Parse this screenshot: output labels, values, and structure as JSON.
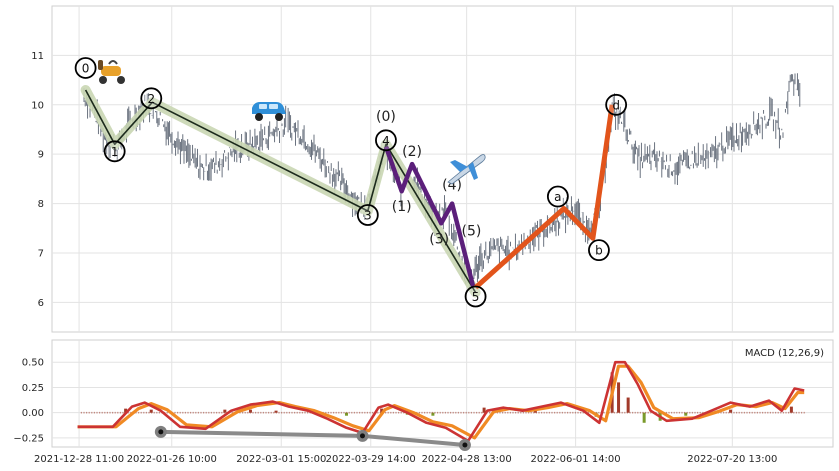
{
  "chart_data": [
    {
      "type": "line",
      "panel": "price",
      "title": "",
      "xlabel": "",
      "ylabel": "",
      "ylim": [
        5.4,
        12.0
      ],
      "yticks": [
        6,
        7,
        8,
        9,
        10,
        11
      ],
      "grid": true,
      "price_path": [
        [
          "2021-12-30",
          10.2
        ],
        [
          "2022-01-02",
          9.9
        ],
        [
          "2022-01-05",
          9.4
        ],
        [
          "2022-01-09",
          9.1
        ],
        [
          "2022-01-13",
          9.6
        ],
        [
          "2022-01-18",
          10.0
        ],
        [
          "2022-01-21",
          9.9
        ],
        [
          "2022-01-25",
          9.5
        ],
        [
          "2022-01-31",
          9.0
        ],
        [
          "2022-02-05",
          8.7
        ],
        [
          "2022-02-10",
          8.8
        ],
        [
          "2022-02-15",
          9.1
        ],
        [
          "2022-02-21",
          9.2
        ],
        [
          "2022-02-26",
          9.4
        ],
        [
          "2022-03-03",
          9.6
        ],
        [
          "2022-03-08",
          9.4
        ],
        [
          "2022-03-13",
          9.0
        ],
        [
          "2022-03-18",
          8.6
        ],
        [
          "2022-03-22",
          8.3
        ],
        [
          "2022-03-27",
          7.9
        ],
        [
          "2022-03-31",
          8.4
        ],
        [
          "2022-04-03",
          9.1
        ],
        [
          "2022-04-06",
          8.6
        ],
        [
          "2022-04-08",
          8.3
        ],
        [
          "2022-04-11",
          8.7
        ],
        [
          "2022-04-15",
          8.1
        ],
        [
          "2022-04-19",
          7.6
        ],
        [
          "2022-04-22",
          7.9
        ],
        [
          "2022-04-26",
          7.1
        ],
        [
          "2022-04-29",
          6.3
        ],
        [
          "2022-05-03",
          6.9
        ],
        [
          "2022-05-08",
          7.1
        ],
        [
          "2022-05-13",
          7.0
        ],
        [
          "2022-05-18",
          7.3
        ],
        [
          "2022-05-23",
          7.5
        ],
        [
          "2022-05-28",
          7.7
        ],
        [
          "2022-06-01",
          7.9
        ],
        [
          "2022-06-05",
          7.5
        ],
        [
          "2022-06-09",
          7.9
        ],
        [
          "2022-06-13",
          9.9
        ],
        [
          "2022-06-17",
          9.6
        ],
        [
          "2022-06-21",
          8.9
        ],
        [
          "2022-06-27",
          8.9
        ],
        [
          "2022-07-03",
          8.7
        ],
        [
          "2022-07-08",
          8.9
        ],
        [
          "2022-07-13",
          8.9
        ],
        [
          "2022-07-18",
          9.2
        ],
        [
          "2022-07-23",
          9.4
        ],
        [
          "2022-07-28",
          9.6
        ],
        [
          "2022-08-02",
          9.8
        ],
        [
          "2022-08-05",
          9.4
        ],
        [
          "2022-08-08",
          10.6
        ],
        [
          "2022-08-11",
          10.2
        ]
      ],
      "wave_main": {
        "labels": [
          "0",
          "1",
          "2",
          "3",
          "4",
          "5"
        ],
        "points": [
          [
            "2021-12-30 12:00",
            10.3
          ],
          [
            "2022-01-08 14:00",
            9.2
          ],
          [
            "2022-01-20 08:00",
            10.05
          ],
          [
            "2022-03-28 16:00",
            7.85
          ],
          [
            "2022-04-03 08:00",
            9.2
          ],
          [
            "2022-05-01 08:00",
            6.2
          ]
        ]
      },
      "wave_sub": {
        "labels": [
          "(0)",
          "(1)",
          "(2)",
          "(3)",
          "(4)",
          "(5)"
        ],
        "points": [
          [
            "2022-04-03 08:00",
            9.15
          ],
          [
            "2022-04-08 06:00",
            8.25
          ],
          [
            "2022-04-11 12:00",
            8.8
          ],
          [
            "2022-04-20 14:00",
            7.6
          ],
          [
            "2022-04-24 00:00",
            8.0
          ],
          [
            "2022-04-30 16:00",
            6.3
          ]
        ]
      },
      "wave_abc": {
        "labels": [
          "a",
          "b",
          "d"
        ],
        "points": [
          [
            "2022-05-01 08:00",
            6.3
          ],
          [
            "2022-05-28 22:00",
            7.9
          ],
          [
            "2022-06-07 00:00",
            7.3
          ],
          [
            "2022-06-13 00:00",
            10.0
          ]
        ]
      },
      "icons": [
        "scooter-icon",
        "car-icon",
        "airplane-icon"
      ]
    },
    {
      "type": "bar",
      "panel": "macd",
      "title": "MACD (12,26,9)",
      "ylim": [
        -0.34,
        0.72
      ],
      "yticks": [
        -0.25,
        0.0,
        0.25,
        0.5
      ],
      "ytick_labels": [
        "−0.25",
        "0.00",
        "0.25",
        "0.50"
      ],
      "xticks": [
        "2021-12-28 11:00",
        "2022-01-26 10:00",
        "2022-03-01 15:00",
        "2022-03-29 14:00",
        "2022-04-28 13:00",
        "2022-06-01 14:00",
        "2022-07-20 13:00"
      ],
      "macd_line": [
        [
          "2021-12-28",
          -0.14
        ],
        [
          "2022-01-08",
          -0.14
        ],
        [
          "2022-01-14",
          0.06
        ],
        [
          "2022-01-18",
          0.1
        ],
        [
          "2022-01-23",
          0.02
        ],
        [
          "2022-01-29",
          -0.14
        ],
        [
          "2022-02-06",
          -0.16
        ],
        [
          "2022-02-14",
          0.02
        ],
        [
          "2022-02-20",
          0.08
        ],
        [
          "2022-02-27",
          0.11
        ],
        [
          "2022-03-04",
          0.06
        ],
        [
          "2022-03-10",
          0.02
        ],
        [
          "2022-03-16",
          -0.06
        ],
        [
          "2022-03-22",
          -0.15
        ],
        [
          "2022-03-27",
          -0.2
        ],
        [
          "2022-04-01",
          0.05
        ],
        [
          "2022-04-04",
          0.08
        ],
        [
          "2022-04-10",
          0.0
        ],
        [
          "2022-04-16",
          -0.1
        ],
        [
          "2022-04-22",
          -0.15
        ],
        [
          "2022-04-29",
          -0.28
        ],
        [
          "2022-05-05",
          0.02
        ],
        [
          "2022-05-10",
          0.05
        ],
        [
          "2022-05-16",
          0.02
        ],
        [
          "2022-05-22",
          0.06
        ],
        [
          "2022-05-28",
          0.1
        ],
        [
          "2022-06-04",
          0.02
        ],
        [
          "2022-06-09",
          -0.1
        ],
        [
          "2022-06-14",
          0.5
        ],
        [
          "2022-06-17",
          0.5
        ],
        [
          "2022-06-21",
          0.28
        ],
        [
          "2022-06-25",
          0.02
        ],
        [
          "2022-06-30",
          -0.08
        ],
        [
          "2022-07-08",
          -0.06
        ],
        [
          "2022-07-14",
          0.02
        ],
        [
          "2022-07-20",
          0.1
        ],
        [
          "2022-07-26",
          0.06
        ],
        [
          "2022-08-01",
          0.12
        ],
        [
          "2022-08-05",
          0.02
        ],
        [
          "2022-08-09",
          0.24
        ],
        [
          "2022-08-12",
          0.22
        ]
      ],
      "signal_line": [
        [
          "2021-12-28",
          -0.14
        ],
        [
          "2022-01-09",
          -0.14
        ],
        [
          "2022-01-16",
          0.04
        ],
        [
          "2022-01-20",
          0.09
        ],
        [
          "2022-01-25",
          0.03
        ],
        [
          "2022-01-31",
          -0.12
        ],
        [
          "2022-02-08",
          -0.14
        ],
        [
          "2022-02-16",
          0.01
        ],
        [
          "2022-02-22",
          0.07
        ],
        [
          "2022-03-01",
          0.1
        ],
        [
          "2022-03-06",
          0.06
        ],
        [
          "2022-03-12",
          0.02
        ],
        [
          "2022-03-18",
          -0.05
        ],
        [
          "2022-03-24",
          -0.13
        ],
        [
          "2022-03-29",
          -0.18
        ],
        [
          "2022-04-03",
          0.03
        ],
        [
          "2022-04-06",
          0.07
        ],
        [
          "2022-04-12",
          0.0
        ],
        [
          "2022-04-18",
          -0.09
        ],
        [
          "2022-04-24",
          -0.13
        ],
        [
          "2022-05-01",
          -0.25
        ],
        [
          "2022-05-07",
          0.01
        ],
        [
          "2022-05-12",
          0.04
        ],
        [
          "2022-05-18",
          0.02
        ],
        [
          "2022-05-24",
          0.05
        ],
        [
          "2022-05-30",
          0.09
        ],
        [
          "2022-06-06",
          0.02
        ],
        [
          "2022-06-11",
          -0.08
        ],
        [
          "2022-06-15",
          0.46
        ],
        [
          "2022-06-18",
          0.46
        ],
        [
          "2022-06-22",
          0.3
        ],
        [
          "2022-06-26",
          0.05
        ],
        [
          "2022-07-02",
          -0.06
        ],
        [
          "2022-07-10",
          -0.05
        ],
        [
          "2022-07-16",
          0.01
        ],
        [
          "2022-07-22",
          0.08
        ],
        [
          "2022-07-28",
          0.06
        ],
        [
          "2022-08-02",
          0.1
        ],
        [
          "2022-08-06",
          0.04
        ],
        [
          "2022-08-10",
          0.2
        ],
        [
          "2022-08-12",
          0.2
        ]
      ],
      "histogram": [
        [
          "2022-01-12",
          0.04
        ],
        [
          "2022-01-20",
          0.03
        ],
        [
          "2022-02-12",
          0.03
        ],
        [
          "2022-02-20",
          0.03
        ],
        [
          "2022-02-28",
          0.02
        ],
        [
          "2022-03-14",
          -0.02
        ],
        [
          "2022-03-22",
          -0.03
        ],
        [
          "2022-04-02",
          0.04
        ],
        [
          "2022-04-10",
          -0.02
        ],
        [
          "2022-04-18",
          -0.03
        ],
        [
          "2022-05-04",
          0.05
        ],
        [
          "2022-05-20",
          0.02
        ],
        [
          "2022-06-08",
          -0.04
        ],
        [
          "2022-06-13",
          0.4
        ],
        [
          "2022-06-15",
          0.3
        ],
        [
          "2022-06-18",
          0.15
        ],
        [
          "2022-06-23",
          -0.1
        ],
        [
          "2022-06-28",
          -0.08
        ],
        [
          "2022-07-06",
          -0.03
        ],
        [
          "2022-07-20",
          0.03
        ],
        [
          "2022-08-08",
          0.06
        ]
      ],
      "divergence_line": {
        "points": [
          [
            "2022-01-23",
            -0.19
          ],
          [
            "2022-03-27",
            -0.23
          ],
          [
            "2022-04-28",
            -0.32
          ]
        ]
      }
    }
  ]
}
